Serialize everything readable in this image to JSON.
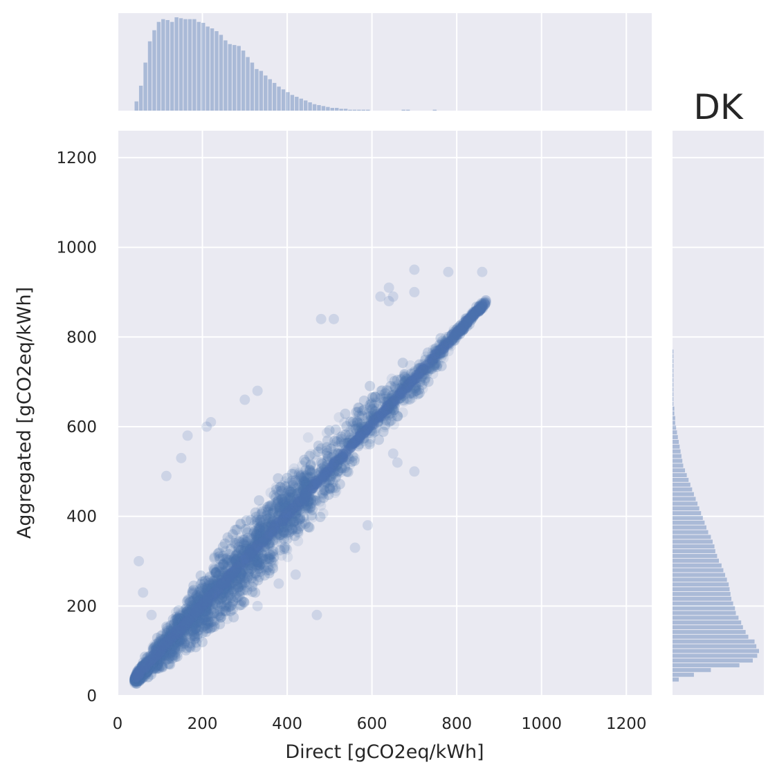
{
  "chart_data": {
    "type": "scatter",
    "title": "DK",
    "xlabel": "Direct [gCO2eq/kWh]",
    "ylabel": "Aggregated [gCO2eq/kWh]",
    "xlim": [
      0,
      1260
    ],
    "ylim": [
      0,
      1260
    ],
    "xticks": [
      "0",
      "200",
      "400",
      "600",
      "800",
      "1000",
      "1200"
    ],
    "yticks": [
      "0",
      "200",
      "400",
      "600",
      "800",
      "1000",
      "1200"
    ],
    "grid": true,
    "point_color": "#4c72b0",
    "point_alpha": 0.12,
    "scatter_trend": {
      "points": [
        [
          40,
          35
        ],
        [
          100,
          95
        ],
        [
          200,
          200
        ],
        [
          300,
          300
        ],
        [
          400,
          410
        ],
        [
          500,
          510
        ],
        [
          600,
          620
        ],
        [
          700,
          700
        ],
        [
          800,
          810
        ],
        [
          870,
          880
        ]
      ],
      "spread_y": [
        8,
        30,
        60,
        75,
        75,
        70,
        55,
        35,
        12,
        5
      ]
    },
    "outliers": [
      [
        115,
        490
      ],
      [
        150,
        530
      ],
      [
        165,
        580
      ],
      [
        210,
        600
      ],
      [
        220,
        610
      ],
      [
        300,
        660
      ],
      [
        330,
        680
      ],
      [
        480,
        840
      ],
      [
        510,
        840
      ],
      [
        640,
        910
      ],
      [
        650,
        890
      ],
      [
        700,
        900
      ],
      [
        780,
        945
      ],
      [
        860,
        945
      ],
      [
        700,
        500
      ],
      [
        660,
        520
      ],
      [
        650,
        540
      ],
      [
        600,
        590
      ],
      [
        560,
        330
      ],
      [
        590,
        380
      ],
      [
        470,
        180
      ],
      [
        330,
        200
      ],
      [
        380,
        250
      ],
      [
        420,
        270
      ],
      [
        700,
        950
      ],
      [
        50,
        300
      ],
      [
        60,
        230
      ],
      [
        80,
        180
      ],
      [
        640,
        880
      ],
      [
        620,
        890
      ]
    ],
    "marginal_x": {
      "bin_start": 40,
      "bin_width": 10.5,
      "counts": [
        10,
        27,
        52,
        75,
        87,
        96,
        99,
        98,
        96,
        101,
        100,
        99,
        99,
        99,
        96,
        95,
        91,
        89,
        86,
        82,
        76,
        72,
        71,
        70,
        65,
        58,
        52,
        45,
        43,
        38,
        34,
        30,
        26,
        23,
        20,
        17,
        15,
        13,
        11,
        9,
        7,
        6,
        5,
        4,
        3,
        3,
        2,
        2,
        1,
        1,
        1,
        1,
        1,
        0,
        0,
        0,
        0,
        0,
        0,
        0,
        1,
        1,
        0,
        0,
        0,
        0,
        0,
        1
      ]
    },
    "marginal_y": {
      "bin_start": 30,
      "bin_width": 10.6,
      "counts": [
        7,
        24,
        43,
        75,
        90,
        95,
        97,
        94,
        92,
        85,
        82,
        79,
        77,
        74,
        71,
        70,
        68,
        66,
        65,
        64,
        63,
        61,
        59,
        57,
        55,
        52,
        50,
        48,
        47,
        45,
        43,
        40,
        38,
        36,
        34,
        32,
        30,
        28,
        26,
        24,
        22,
        20,
        18,
        16,
        14,
        12,
        11,
        10,
        9,
        8,
        7,
        6,
        5,
        4,
        3,
        3,
        2,
        2,
        1,
        1,
        1,
        1,
        1,
        1,
        1,
        1,
        1,
        1,
        1,
        1
      ]
    }
  }
}
